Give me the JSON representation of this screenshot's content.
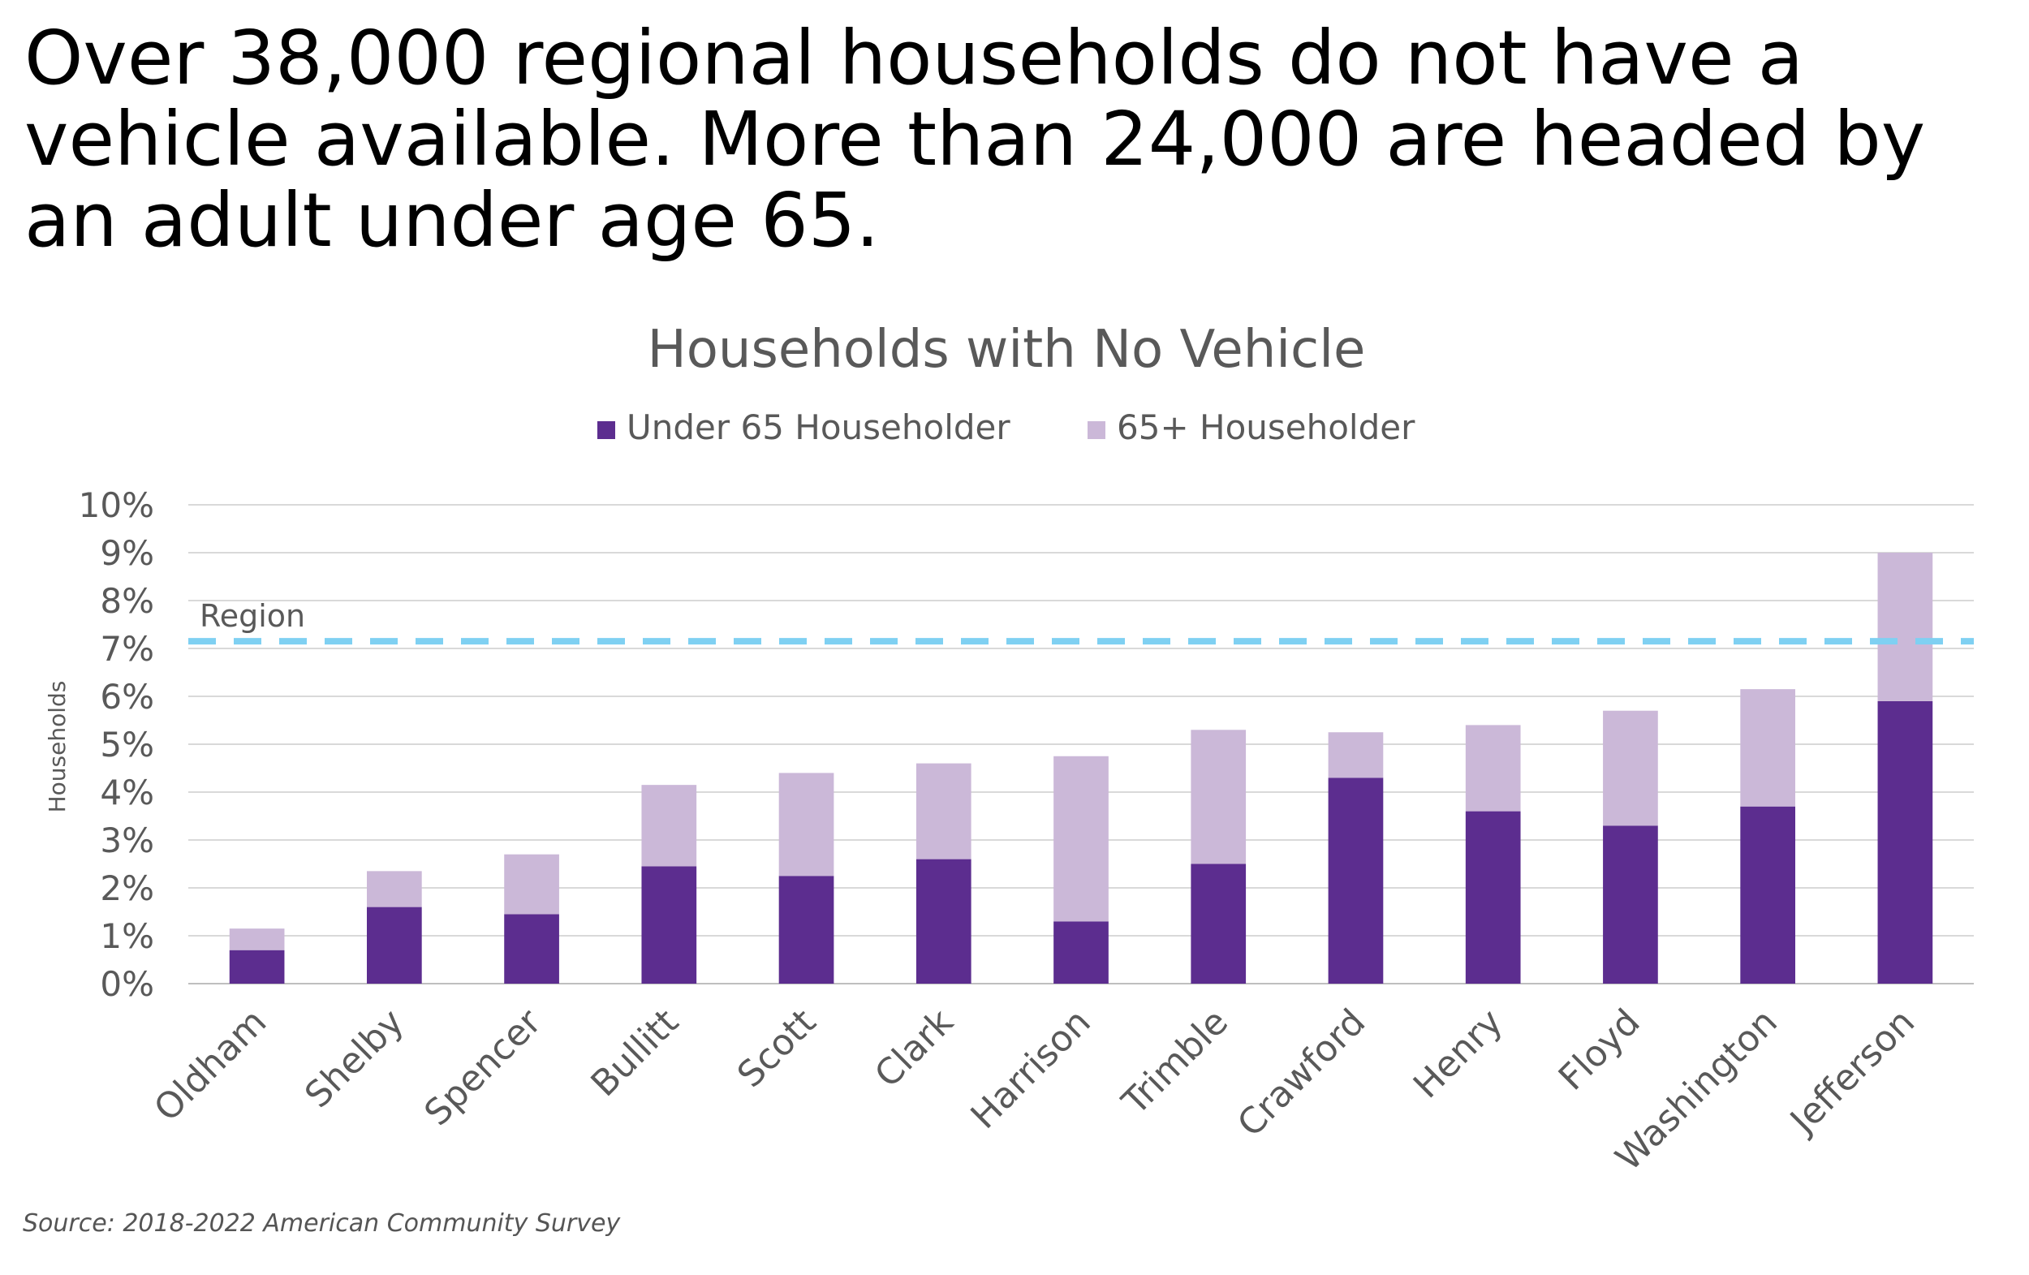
{
  "headline": "Over 38,000 regional households do not have a vehicle available. More than 24,000 are headed by an adult under age 65.",
  "source": "Source: 2018-2022 American Community Survey",
  "colors": {
    "under65": "#5c2d8f",
    "over65": "#cbb8d8",
    "region": "#7fd0f2",
    "grid": "#d9d9d9",
    "text": "#595959"
  },
  "chart_data": {
    "type": "bar",
    "stacked": true,
    "title": "Households with No Vehicle",
    "xlabel": "",
    "ylabel": "Households",
    "ylim": [
      0,
      10
    ],
    "y_ticks": [
      "0%",
      "1%",
      "2%",
      "3%",
      "4%",
      "5%",
      "6%",
      "7%",
      "8%",
      "9%",
      "10%"
    ],
    "grid": true,
    "legend_position": "top-center",
    "categories": [
      "Oldham",
      "Shelby",
      "Spencer",
      "Bullitt",
      "Scott",
      "Clark",
      "Harrison",
      "Trimble",
      "Crawford",
      "Henry",
      "Floyd",
      "Washington",
      "Jefferson"
    ],
    "series": [
      {
        "name": "Under 65 Householder",
        "values": [
          0.7,
          1.6,
          1.45,
          2.45,
          2.25,
          2.6,
          1.3,
          2.5,
          4.3,
          3.6,
          3.3,
          3.7,
          5.9
        ]
      },
      {
        "name": "65+ Householder",
        "values": [
          0.45,
          0.75,
          1.25,
          1.7,
          2.15,
          2.0,
          3.45,
          2.8,
          0.95,
          1.8,
          2.4,
          2.45,
          3.1
        ]
      }
    ],
    "reference_line": {
      "label": "Region",
      "value": 7.15
    }
  }
}
